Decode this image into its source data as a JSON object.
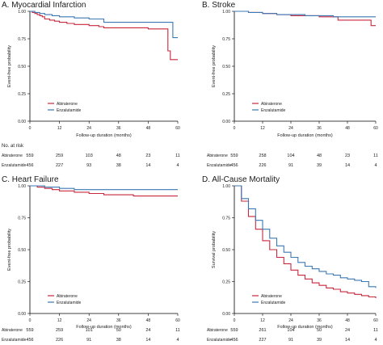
{
  "colors": {
    "abiraterone": "#c8283c",
    "enzalutamide": "#3c78b4",
    "axis": "#000000",
    "text": "#1a1a1a"
  },
  "chart_data": [
    {
      "type": "line",
      "title": "A. Myocardial Infarction",
      "xlabel": "Follow-up duration (months)",
      "ylabel": "Event-free probability",
      "xlim": [
        0,
        60
      ],
      "ylim": [
        0,
        1
      ],
      "xticks": [
        "0",
        "12",
        "24",
        "36",
        "48",
        "60"
      ],
      "yticks": [
        "0.00",
        "0.25",
        "0.50",
        "0.75",
        "1.00"
      ],
      "grid": false,
      "legend_position": "bottom-left",
      "series": [
        {
          "name": "Abiraterone",
          "color": "#c8283c",
          "x": [
            0,
            1,
            2,
            3,
            4,
            5,
            6,
            8,
            10,
            12,
            15,
            18,
            24,
            28,
            30,
            36,
            42,
            48,
            54,
            56,
            57,
            60
          ],
          "y": [
            1.0,
            0.99,
            0.98,
            0.97,
            0.96,
            0.95,
            0.93,
            0.92,
            0.91,
            0.9,
            0.89,
            0.88,
            0.87,
            0.86,
            0.85,
            0.85,
            0.85,
            0.84,
            0.84,
            0.64,
            0.56,
            0.56
          ]
        },
        {
          "name": "Enzalutamide",
          "color": "#3c78b4",
          "x": [
            0,
            2,
            4,
            6,
            9,
            12,
            18,
            24,
            30,
            36,
            42,
            48,
            54,
            58,
            60
          ],
          "y": [
            1.0,
            0.99,
            0.98,
            0.97,
            0.96,
            0.95,
            0.94,
            0.93,
            0.9,
            0.9,
            0.9,
            0.9,
            0.9,
            0.76,
            0.76
          ]
        }
      ],
      "risk_table": {
        "label": "No. at risk",
        "rows": [
          {
            "name": "Abiraterone",
            "values": [
              "559",
              "259",
              "103",
              "48",
              "23",
              "11"
            ]
          },
          {
            "name": "Enzalutamide",
            "values": [
              "456",
              "227",
              "93",
              "38",
              "14",
              "4"
            ]
          }
        ]
      }
    },
    {
      "type": "line",
      "title": "B. Stroke",
      "xlabel": "Follow-up duration (months)",
      "ylabel": "Event-free probability",
      "xlim": [
        0,
        60
      ],
      "ylim": [
        0,
        1
      ],
      "xticks": [
        "0",
        "12",
        "24",
        "36",
        "48",
        "60"
      ],
      "yticks": [
        "0.00",
        "0.25",
        "0.50",
        "0.75",
        "1.00"
      ],
      "grid": false,
      "legend_position": "bottom-left",
      "series": [
        {
          "name": "Abiraterone",
          "color": "#c8283c",
          "x": [
            0,
            6,
            12,
            18,
            24,
            30,
            36,
            42,
            44,
            48,
            54,
            58,
            60
          ],
          "y": [
            1.0,
            0.99,
            0.98,
            0.97,
            0.96,
            0.96,
            0.95,
            0.95,
            0.92,
            0.92,
            0.92,
            0.87,
            0.87
          ]
        },
        {
          "name": "Enzalutamide",
          "color": "#3c78b4",
          "x": [
            0,
            6,
            12,
            18,
            24,
            30,
            36,
            42,
            48,
            54,
            58,
            60
          ],
          "y": [
            1.0,
            0.99,
            0.98,
            0.97,
            0.97,
            0.96,
            0.96,
            0.95,
            0.95,
            0.95,
            0.95,
            0.95
          ]
        }
      ],
      "risk_table": {
        "label": "",
        "rows": [
          {
            "name": "Abiraterone",
            "values": [
              "559",
              "258",
              "104",
              "48",
              "23",
              "11"
            ]
          },
          {
            "name": "Enzalutamide",
            "values": [
              "456",
              "226",
              "91",
              "39",
              "14",
              "4"
            ]
          }
        ]
      }
    },
    {
      "type": "line",
      "title": "C. Heart Failure",
      "xlabel": "Follow-up duration (months)",
      "ylabel": "Event-free probability",
      "xlim": [
        0,
        60
      ],
      "ylim": [
        0,
        1
      ],
      "xticks": [
        "0",
        "12",
        "24",
        "36",
        "48",
        "60"
      ],
      "yticks": [
        "0.00",
        "0.25",
        "0.50",
        "0.75",
        "1.00"
      ],
      "grid": false,
      "legend_position": "bottom-left",
      "series": [
        {
          "name": "Abiraterone",
          "color": "#c8283c",
          "x": [
            0,
            3,
            6,
            9,
            12,
            18,
            24,
            30,
            36,
            42,
            48,
            54,
            60
          ],
          "y": [
            1.0,
            0.99,
            0.98,
            0.97,
            0.96,
            0.95,
            0.94,
            0.93,
            0.93,
            0.92,
            0.92,
            0.92,
            0.92
          ]
        },
        {
          "name": "Enzalutamide",
          "color": "#3c78b4",
          "x": [
            0,
            6,
            12,
            18,
            24,
            30,
            36,
            48,
            60
          ],
          "y": [
            1.0,
            0.99,
            0.98,
            0.97,
            0.97,
            0.97,
            0.97,
            0.97,
            0.97
          ]
        }
      ],
      "risk_table": {
        "label": "",
        "rows": [
          {
            "name": "Abiraterone",
            "values": [
              "559",
              "259",
              "101",
              "50",
              "24",
              "11"
            ]
          },
          {
            "name": "Enzalutamide",
            "values": [
              "456",
              "226",
              "91",
              "38",
              "14",
              "4"
            ]
          }
        ]
      }
    },
    {
      "type": "line",
      "title": "D. All-Cause Mortality",
      "xlabel": "Follow-up duration (months)",
      "ylabel": "Survival probability",
      "xlim": [
        0,
        60
      ],
      "ylim": [
        0,
        1
      ],
      "xticks": [
        "0",
        "12",
        "24",
        "36",
        "48",
        "60"
      ],
      "yticks": [
        "0.00",
        "0.25",
        "0.50",
        "0.75",
        "1.00"
      ],
      "grid": false,
      "legend_position": "bottom-left",
      "series": [
        {
          "name": "Abiraterone",
          "color": "#c8283c",
          "x": [
            0,
            3,
            6,
            9,
            12,
            15,
            18,
            21,
            24,
            27,
            30,
            33,
            36,
            39,
            42,
            45,
            48,
            51,
            54,
            57,
            60
          ],
          "y": [
            1.0,
            0.88,
            0.76,
            0.66,
            0.57,
            0.5,
            0.44,
            0.39,
            0.34,
            0.3,
            0.27,
            0.24,
            0.22,
            0.2,
            0.19,
            0.17,
            0.16,
            0.15,
            0.14,
            0.13,
            0.12
          ]
        },
        {
          "name": "Enzalutamide",
          "color": "#3c78b4",
          "x": [
            0,
            3,
            6,
            9,
            12,
            15,
            18,
            21,
            24,
            27,
            30,
            33,
            36,
            39,
            42,
            45,
            48,
            51,
            54,
            57,
            60
          ],
          "y": [
            1.0,
            0.9,
            0.82,
            0.73,
            0.66,
            0.59,
            0.53,
            0.48,
            0.44,
            0.4,
            0.37,
            0.35,
            0.33,
            0.31,
            0.3,
            0.28,
            0.27,
            0.26,
            0.25,
            0.21,
            0.2
          ]
        }
      ],
      "risk_table": {
        "label": "",
        "rows": [
          {
            "name": "Abiraterone",
            "values": [
              "559",
              "261",
              "104",
              "50",
              "24",
              "11"
            ]
          },
          {
            "name": "Enzalutamide",
            "values": [
              "456",
              "227",
              "91",
              "39",
              "14",
              "4"
            ]
          }
        ]
      }
    }
  ]
}
